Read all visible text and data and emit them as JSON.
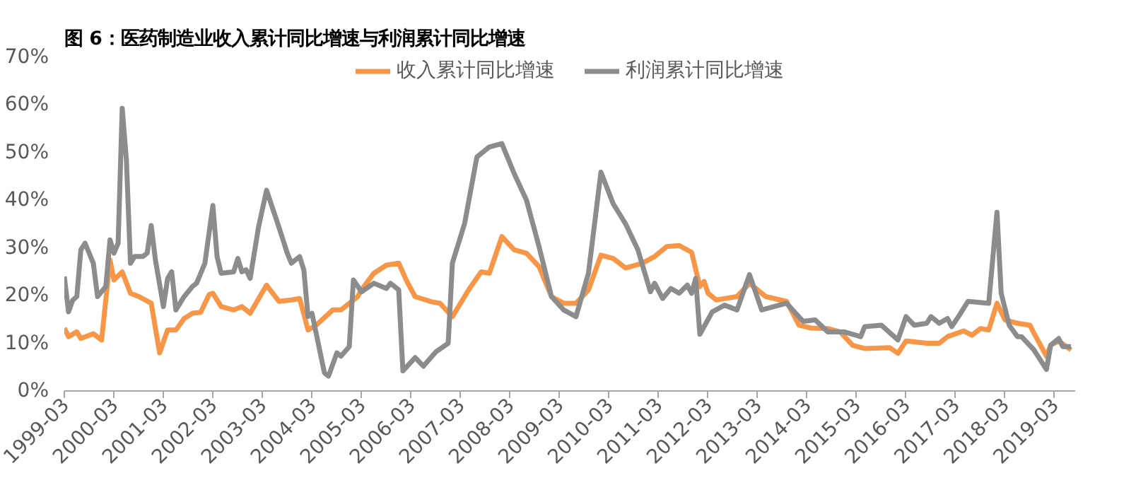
{
  "chart_data": {
    "type": "line",
    "title": "图 6：医药制造业收入累计同比增速与利润累计同比增速",
    "xlim": [
      "1999-03",
      "2019-08"
    ],
    "xticks": [
      "1999-03",
      "2000-03",
      "2001-03",
      "2002-03",
      "2003-03",
      "2004-03",
      "2005-03",
      "2006-03",
      "2007-03",
      "2008-03",
      "2009-03",
      "2010-03",
      "2011-03",
      "2012-03",
      "2013-03",
      "2014-03",
      "2015-03",
      "2016-03",
      "2017-03",
      "2018-03",
      "2019-03"
    ],
    "ylim": [
      0,
      70
    ],
    "yticks": [
      {
        "value": 0,
        "label": "0%"
      },
      {
        "value": 10,
        "label": "10%"
      },
      {
        "value": 20,
        "label": "20%"
      },
      {
        "value": 30,
        "label": "30%"
      },
      {
        "value": 40,
        "label": "40%"
      },
      {
        "value": 50,
        "label": "50%"
      },
      {
        "value": 60,
        "label": "60%"
      },
      {
        "value": 70,
        "label": "70%"
      }
    ],
    "grid": false,
    "legend": "top",
    "marker": "none",
    "line_style": "solid",
    "series": [
      {
        "name": "收入累计同比增速",
        "color": "#f79646",
        "x": [
          "1999-03",
          "1999-04",
          "1999-06",
          "1999-07",
          "1999-10",
          "1999-12",
          "2000-02",
          "2000-03",
          "2000-05",
          "2000-07",
          "2000-09",
          "2000-12",
          "2001-02",
          "2001-04",
          "2001-06",
          "2001-08",
          "2001-10",
          "2001-12",
          "2002-02",
          "2002-03",
          "2002-05",
          "2002-08",
          "2002-10",
          "2002-12",
          "2003-04",
          "2003-07",
          "2003-10",
          "2003-12",
          "2004-02",
          "2004-04",
          "2004-08",
          "2004-10",
          "2004-11",
          "2005-02",
          "2005-03",
          "2005-06",
          "2005-09",
          "2005-12",
          "2006-02",
          "2006-04",
          "2006-08",
          "2006-10",
          "2007-01",
          "2007-05",
          "2007-08",
          "2007-10",
          "2008-01",
          "2008-04",
          "2008-07",
          "2008-10",
          "2009-01",
          "2009-04",
          "2009-07",
          "2009-10",
          "2010-01",
          "2010-04",
          "2010-07",
          "2010-11",
          "2011-02",
          "2011-05",
          "2011-08",
          "2011-11",
          "2012-01",
          "2012-02",
          "2012-03",
          "2012-05",
          "2012-10",
          "2013-01",
          "2013-05",
          "2013-10",
          "2014-01",
          "2014-04",
          "2014-08",
          "2014-11",
          "2015-02",
          "2015-05",
          "2015-11",
          "2016-01",
          "2016-03",
          "2016-08",
          "2016-11",
          "2017-01",
          "2017-05",
          "2017-07",
          "2017-09",
          "2017-11",
          "2018-01",
          "2018-03",
          "2018-06",
          "2018-09",
          "2018-10",
          "2019-01",
          "2019-02",
          "2019-04",
          "2019-07"
        ],
        "values": [
          13.2,
          11.4,
          12.4,
          11,
          12,
          10.7,
          27.5,
          23.3,
          25,
          20.5,
          19.8,
          18.4,
          8,
          12.8,
          12.8,
          15.2,
          16.3,
          16.5,
          20.2,
          20.5,
          17.7,
          17,
          17.7,
          16.3,
          22.2,
          18.8,
          19.1,
          19.4,
          12.8,
          13.8,
          17,
          17,
          17.7,
          19.8,
          21.2,
          24.7,
          26.4,
          26.8,
          22.9,
          19.8,
          18.7,
          18.4,
          15.6,
          21.2,
          25,
          24.7,
          32.4,
          29.6,
          28.9,
          26.1,
          19.8,
          18.4,
          18.4,
          21.2,
          28.5,
          27.8,
          25.8,
          26.8,
          28.2,
          30.3,
          30.5,
          29.1,
          21.9,
          23,
          20.5,
          19.1,
          19.8,
          22.6,
          19.8,
          18.8,
          13.8,
          13.2,
          13.1,
          12.4,
          9.6,
          8.9,
          9.1,
          7.9,
          10.5,
          10,
          10,
          11.4,
          12.6,
          11.7,
          13.1,
          12.8,
          18.4,
          14.9,
          14.2,
          13.8,
          12.1,
          7.3,
          9.6,
          10.5,
          8.6
        ]
      },
      {
        "name": "利润累计同比增速",
        "color": "#8c8c8c",
        "x": [
          "1999-03",
          "1999-04",
          "1999-05",
          "1999-06",
          "1999-07",
          "1999-08",
          "1999-10",
          "1999-11",
          "2000-01",
          "2000-02",
          "2000-03",
          "2000-04",
          "2000-05",
          "2000-06",
          "2000-07",
          "2000-08",
          "2000-10",
          "2000-11",
          "2000-12",
          "2001-01",
          "2001-03",
          "2001-04",
          "2001-05",
          "2001-06",
          "2001-08",
          "2001-10",
          "2001-11",
          "2002-01",
          "2002-03",
          "2002-04",
          "2002-05",
          "2002-08",
          "2002-09",
          "2002-10",
          "2002-11",
          "2002-12",
          "2003-02",
          "2003-04",
          "2003-07",
          "2003-09",
          "2003-10",
          "2003-12",
          "2004-01",
          "2004-02",
          "2004-03",
          "2004-05",
          "2004-06",
          "2004-07",
          "2004-09",
          "2004-10",
          "2004-12",
          "2005-01",
          "2005-03",
          "2005-06",
          "2005-09",
          "2005-10",
          "2005-12",
          "2006-01",
          "2006-04",
          "2006-06",
          "2006-09",
          "2006-12",
          "2007-01",
          "2007-04",
          "2007-07",
          "2007-10",
          "2008-01",
          "2008-04",
          "2008-07",
          "2008-10",
          "2009-01",
          "2009-04",
          "2009-07",
          "2009-10",
          "2010-01",
          "2010-04",
          "2010-07",
          "2010-10",
          "2011-01",
          "2011-02",
          "2011-04",
          "2011-06",
          "2011-08",
          "2011-10",
          "2011-11",
          "2011-12",
          "2012-01",
          "2012-04",
          "2012-07",
          "2012-10",
          "2013-01",
          "2013-04",
          "2013-07",
          "2013-10",
          "2014-02",
          "2014-05",
          "2014-08",
          "2014-12",
          "2015-04",
          "2015-05",
          "2015-09",
          "2016-01",
          "2016-03",
          "2016-05",
          "2016-08",
          "2016-09",
          "2016-11",
          "2017-01",
          "2017-02",
          "2017-04",
          "2017-06",
          "2017-11",
          "2018-01",
          "2018-02",
          "2018-04",
          "2018-06",
          "2018-07",
          "2018-10",
          "2019-01",
          "2019-02",
          "2019-04",
          "2019-05",
          "2019-07"
        ],
        "values": [
          24,
          16.6,
          19,
          19.8,
          29.6,
          31,
          26.8,
          19.8,
          21.9,
          31.7,
          28.9,
          31,
          59.3,
          48.4,
          26.8,
          28.2,
          28.2,
          28.9,
          34.7,
          27.5,
          17.7,
          23.6,
          25,
          17,
          19.8,
          21.9,
          22.6,
          26.8,
          38.9,
          28.2,
          24.7,
          25,
          27.8,
          25,
          25.4,
          23.6,
          34.4,
          42.1,
          34.4,
          28.9,
          26.8,
          28.2,
          25.4,
          15.6,
          16.3,
          8,
          3.8,
          3.1,
          8,
          7.3,
          9.3,
          23.3,
          20.8,
          22.6,
          21.5,
          22.6,
          21.2,
          4.2,
          7,
          5.2,
          8.2,
          10,
          26.8,
          35.1,
          49.1,
          51.2,
          51.9,
          45.6,
          40,
          30.3,
          19.8,
          17,
          15.6,
          24.7,
          45.9,
          39.3,
          35.1,
          29.6,
          20.8,
          22.6,
          19.4,
          21.5,
          20.5,
          22.2,
          20.5,
          23.6,
          11.9,
          16.6,
          18,
          17,
          24.4,
          17,
          17.7,
          18.4,
          14.6,
          14.9,
          12.4,
          12.4,
          11.4,
          13.5,
          13.8,
          10.7,
          15.6,
          13.8,
          14.2,
          15.6,
          14.2,
          15.2,
          13.5,
          16,
          18.8,
          18.4,
          37.5,
          20.5,
          13.8,
          11.4,
          11.4,
          8.6,
          4.5,
          9.6,
          11,
          9.3,
          9.3
        ]
      }
    ]
  }
}
